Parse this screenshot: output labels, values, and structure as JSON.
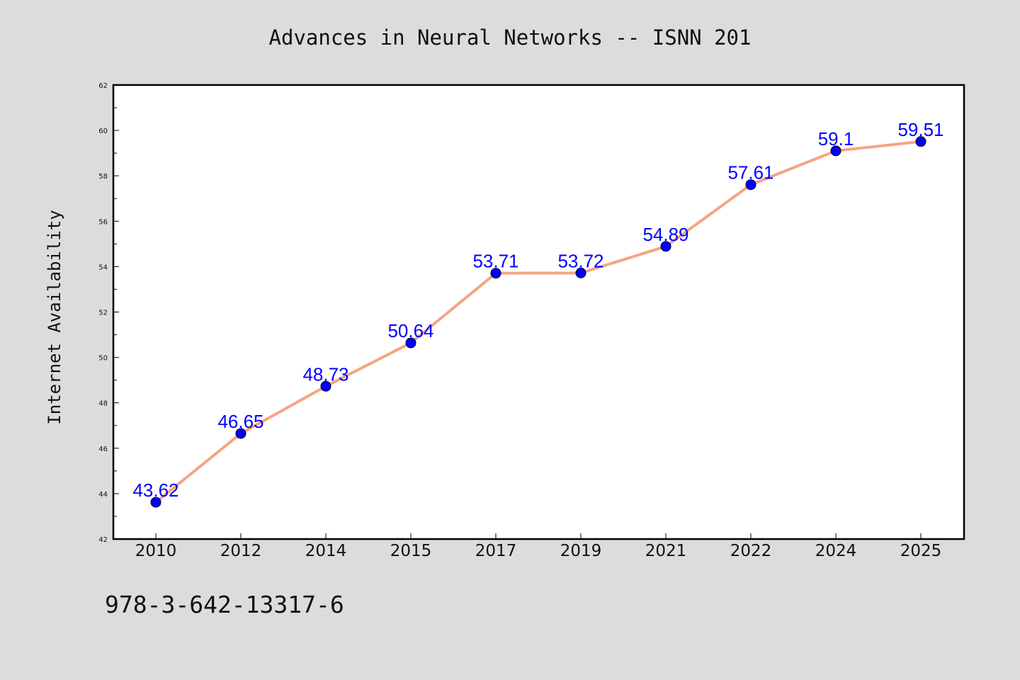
{
  "chart_data": {
    "type": "line",
    "title": "Advances in Neural Networks -- ISNN 201",
    "xlabel": "",
    "ylabel": "Internet Availability",
    "categories": [
      "2010",
      "2012",
      "2014",
      "2015",
      "2017",
      "2019",
      "2021",
      "2022",
      "2024",
      "2025"
    ],
    "series": [
      {
        "values": [
          43.62,
          46.65,
          48.73,
          50.64,
          53.71,
          53.72,
          54.89,
          57.61,
          59.1,
          59.51
        ],
        "labels": [
          "43.62",
          "46.65",
          "48.73",
          "50.64",
          "53.71",
          "53.72",
          "54.89",
          "57.61",
          "59.1",
          "59.51"
        ],
        "line_color": "#f4a582",
        "marker_color": "#0000ff",
        "label_color": "#0000ff"
      }
    ],
    "ylim": [
      42,
      62
    ],
    "yticks": [
      "42",
      "44",
      "46",
      "48",
      "50",
      "52",
      "54",
      "56",
      "58",
      "60",
      "62"
    ],
    "grid": false,
    "legend": "none"
  },
  "footer": {
    "text": "978-3-642-13317-6"
  },
  "colors": {
    "background": "#dcdcdc",
    "plot_background": "#ffffff",
    "axis": "#000000"
  }
}
